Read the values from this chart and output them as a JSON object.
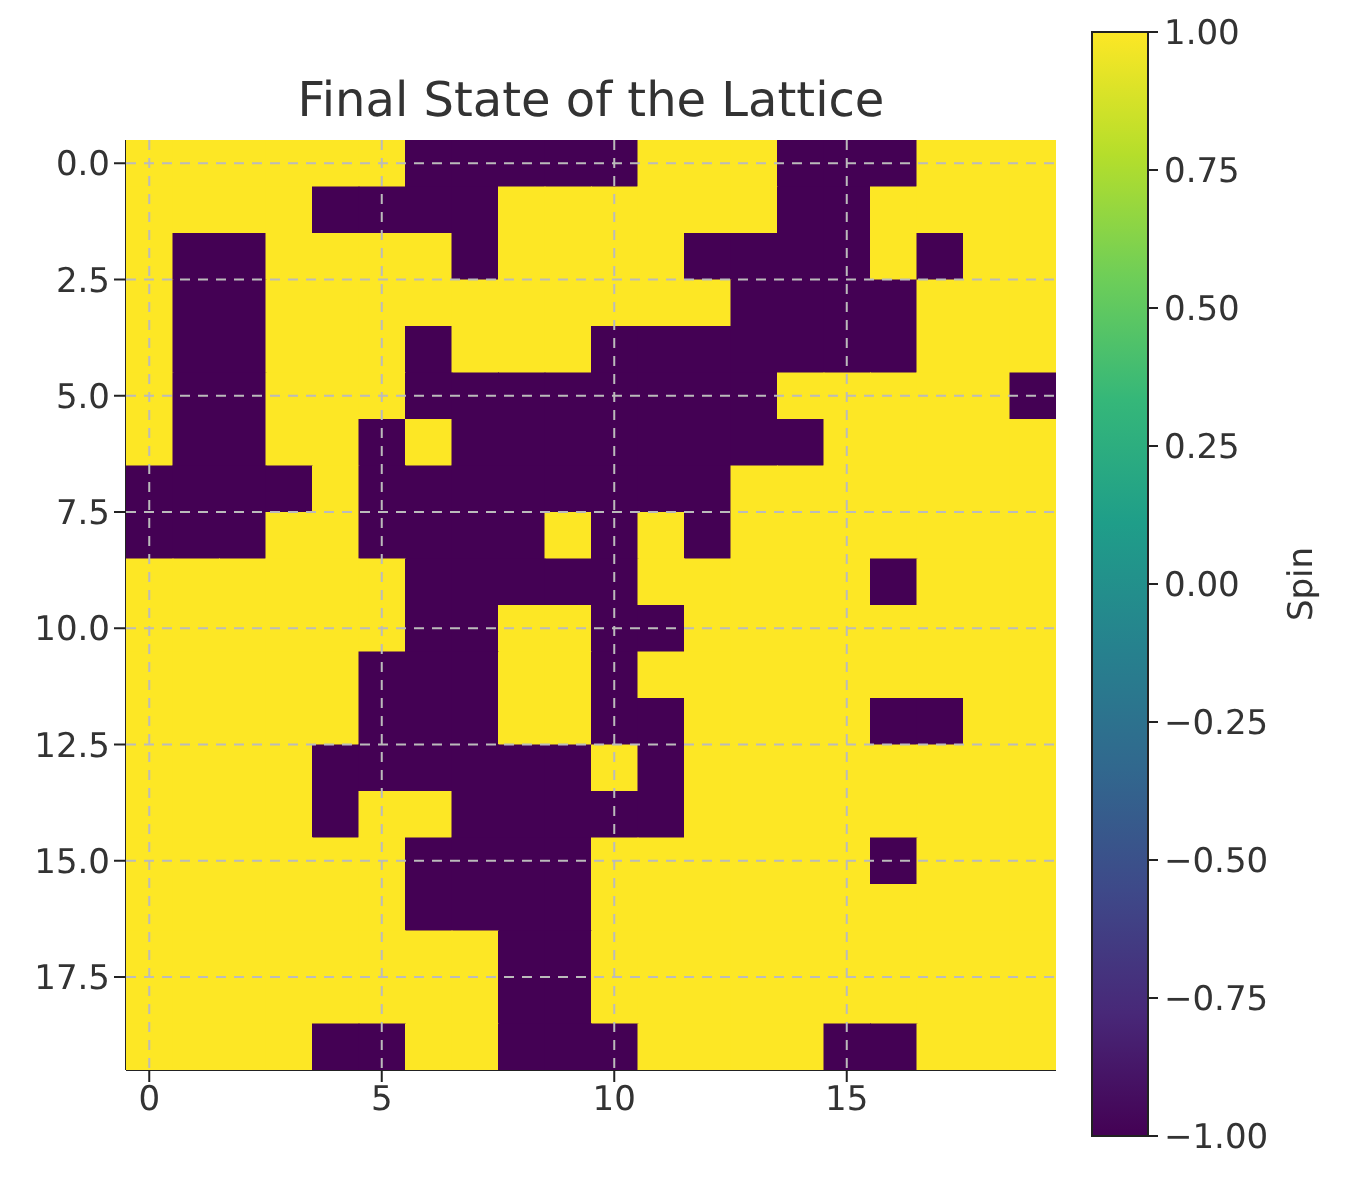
{
  "chart_data": {
    "type": "heatmap",
    "title": "Final State of the Lattice",
    "clabel": "Spin",
    "xlim": [
      -0.5,
      19.5
    ],
    "xticks": [
      0,
      5,
      10,
      15
    ],
    "ylim": [
      19.5,
      -0.5
    ],
    "yticks": [
      {
        "value": 0,
        "label": "0.0"
      },
      {
        "value": 2.5,
        "label": "2.5"
      },
      {
        "value": 5,
        "label": "5.0"
      },
      {
        "value": 7.5,
        "label": "7.5"
      },
      {
        "value": 10,
        "label": "10.0"
      },
      {
        "value": 12.5,
        "label": "12.5"
      },
      {
        "value": 15,
        "label": "15.0"
      },
      {
        "value": 17.5,
        "label": "17.5"
      }
    ],
    "clim": [
      -1,
      1
    ],
    "cticks": [
      {
        "value": -1,
        "label": "−1.00"
      },
      {
        "value": -0.75,
        "label": "−0.75"
      },
      {
        "value": -0.5,
        "label": "−0.50"
      },
      {
        "value": -0.25,
        "label": "−0.25"
      },
      {
        "value": 0,
        "label": "0.00"
      },
      {
        "value": 0.25,
        "label": "0.25"
      },
      {
        "value": 0.5,
        "label": "0.50"
      },
      {
        "value": 0.75,
        "label": "0.75"
      },
      {
        "value": 1,
        "label": "1.00"
      }
    ],
    "grid": true,
    "cells": [
      [
        1,
        1,
        1,
        1,
        1,
        1,
        -1,
        -1,
        -1,
        -1,
        -1,
        1,
        1,
        1,
        -1,
        -1,
        -1,
        1,
        1,
        1
      ],
      [
        1,
        1,
        1,
        1,
        -1,
        -1,
        -1,
        -1,
        1,
        1,
        1,
        1,
        1,
        1,
        -1,
        -1,
        1,
        1,
        1,
        1
      ],
      [
        1,
        -1,
        -1,
        1,
        1,
        1,
        1,
        -1,
        1,
        1,
        1,
        1,
        -1,
        -1,
        -1,
        -1,
        1,
        -1,
        1,
        1
      ],
      [
        1,
        -1,
        -1,
        1,
        1,
        1,
        1,
        1,
        1,
        1,
        1,
        1,
        1,
        -1,
        -1,
        -1,
        -1,
        1,
        1,
        1
      ],
      [
        1,
        -1,
        -1,
        1,
        1,
        1,
        -1,
        1,
        1,
        1,
        -1,
        -1,
        -1,
        -1,
        -1,
        -1,
        -1,
        1,
        1,
        1
      ],
      [
        1,
        -1,
        -1,
        1,
        1,
        1,
        -1,
        -1,
        -1,
        -1,
        -1,
        -1,
        -1,
        -1,
        1,
        1,
        1,
        1,
        1,
        -1
      ],
      [
        1,
        -1,
        -1,
        1,
        1,
        -1,
        1,
        -1,
        -1,
        -1,
        -1,
        -1,
        -1,
        -1,
        -1,
        1,
        1,
        1,
        1,
        1
      ],
      [
        -1,
        -1,
        -1,
        -1,
        1,
        -1,
        -1,
        -1,
        -1,
        -1,
        -1,
        -1,
        -1,
        1,
        1,
        1,
        1,
        1,
        1,
        1
      ],
      [
        -1,
        -1,
        -1,
        1,
        1,
        -1,
        -1,
        -1,
        -1,
        1,
        -1,
        1,
        -1,
        1,
        1,
        1,
        1,
        1,
        1,
        1
      ],
      [
        1,
        1,
        1,
        1,
        1,
        1,
        -1,
        -1,
        -1,
        -1,
        -1,
        1,
        1,
        1,
        1,
        1,
        -1,
        1,
        1,
        1
      ],
      [
        1,
        1,
        1,
        1,
        1,
        1,
        -1,
        -1,
        1,
        1,
        -1,
        -1,
        1,
        1,
        1,
        1,
        1,
        1,
        1,
        1
      ],
      [
        1,
        1,
        1,
        1,
        1,
        -1,
        -1,
        -1,
        1,
        1,
        -1,
        1,
        1,
        1,
        1,
        1,
        1,
        1,
        1,
        1
      ],
      [
        1,
        1,
        1,
        1,
        1,
        -1,
        -1,
        -1,
        1,
        1,
        -1,
        -1,
        1,
        1,
        1,
        1,
        -1,
        -1,
        1,
        1
      ],
      [
        1,
        1,
        1,
        1,
        -1,
        -1,
        -1,
        -1,
        -1,
        -1,
        1,
        -1,
        1,
        1,
        1,
        1,
        1,
        1,
        1,
        1
      ],
      [
        1,
        1,
        1,
        1,
        -1,
        1,
        1,
        -1,
        -1,
        -1,
        -1,
        -1,
        1,
        1,
        1,
        1,
        1,
        1,
        1,
        1
      ],
      [
        1,
        1,
        1,
        1,
        1,
        1,
        -1,
        -1,
        -1,
        -1,
        1,
        1,
        1,
        1,
        1,
        1,
        -1,
        1,
        1,
        1
      ],
      [
        1,
        1,
        1,
        1,
        1,
        1,
        -1,
        -1,
        -1,
        -1,
        1,
        1,
        1,
        1,
        1,
        1,
        1,
        1,
        1,
        1
      ],
      [
        1,
        1,
        1,
        1,
        1,
        1,
        1,
        1,
        -1,
        -1,
        1,
        1,
        1,
        1,
        1,
        1,
        1,
        1,
        1,
        1
      ],
      [
        1,
        1,
        1,
        1,
        1,
        1,
        1,
        1,
        -1,
        -1,
        1,
        1,
        1,
        1,
        1,
        1,
        1,
        1,
        1,
        1
      ],
      [
        1,
        1,
        1,
        1,
        -1,
        -1,
        1,
        1,
        -1,
        -1,
        -1,
        1,
        1,
        1,
        1,
        -1,
        -1,
        1,
        1,
        1
      ]
    ]
  }
}
